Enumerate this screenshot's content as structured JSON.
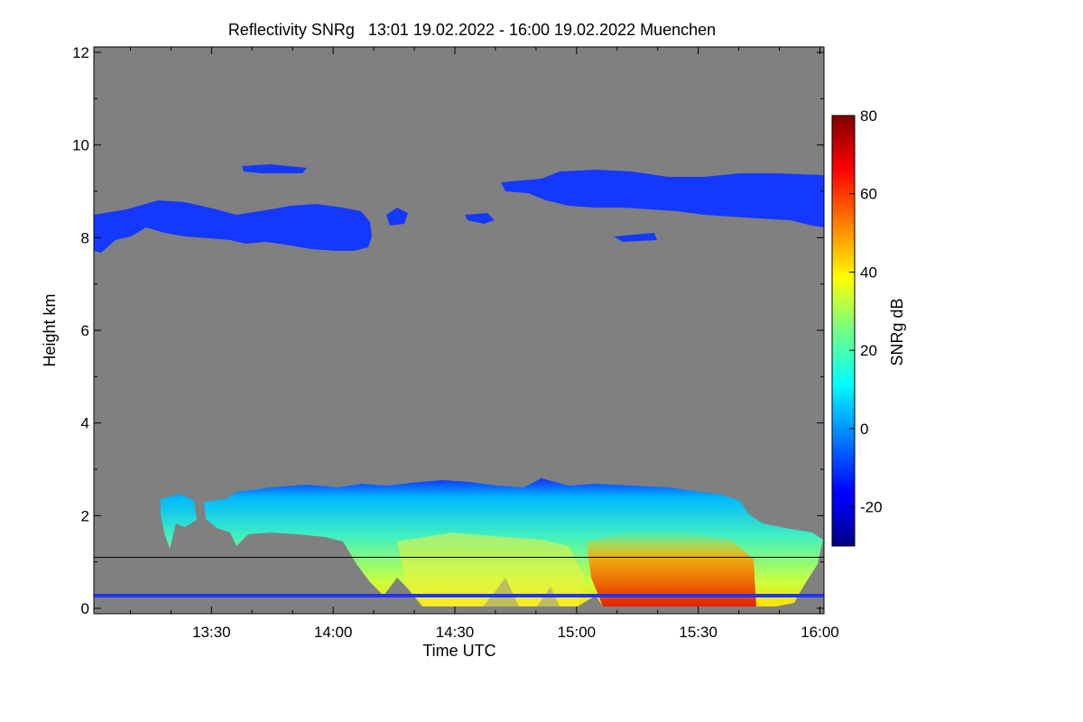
{
  "chart_data": {
    "type": "heatmap",
    "title": "Reflectivity SNRg   13:01 19.02.2022 - 16:00 19.02.2022 Muenchen",
    "xlabel": "Time UTC",
    "ylabel": "Height km",
    "x_range_utc": [
      "13:01",
      "16:00"
    ],
    "x_ticks": [
      {
        "label": "13:30",
        "minutes": 810
      },
      {
        "label": "14:00",
        "minutes": 840
      },
      {
        "label": "14:30",
        "minutes": 870
      },
      {
        "label": "15:00",
        "minutes": 900
      },
      {
        "label": "15:30",
        "minutes": 930
      },
      {
        "label": "16:00",
        "minutes": 960
      }
    ],
    "x_minutes_range": [
      781,
      961
    ],
    "ylim": [
      0,
      12
    ],
    "y_ticks": [
      "0",
      "2",
      "4",
      "6",
      "8",
      "10",
      "12"
    ],
    "reference_line_height_km": 1.1,
    "background_color": "#808080",
    "colorbar": {
      "label": "SNRg dB",
      "range": [
        -30,
        80
      ],
      "ticks": [
        "-20",
        "0",
        "20",
        "40",
        "60",
        "80"
      ],
      "colormap": "jet"
    },
    "echo_regions": [
      {
        "description": "cirrus layer",
        "time_range_utc": [
          "13:01",
          "14:05"
        ],
        "height_range_km": [
          7.5,
          8.8
        ],
        "typical_dB": -20
      },
      {
        "description": "cirrus layer",
        "time_range_utc": [
          "14:35",
          "16:00"
        ],
        "height_range_km": [
          8.2,
          9.4
        ],
        "typical_dB": -20
      },
      {
        "description": "precipitation",
        "time_range_utc": [
          "13:20",
          "15:55"
        ],
        "height_range_km": [
          0,
          2.8
        ],
        "typical_dB": 20
      },
      {
        "description": "strongest precipitation",
        "time_range_utc": [
          "15:05",
          "15:45"
        ],
        "height_range_km": [
          0,
          1.5
        ],
        "typical_dB": 60
      },
      {
        "description": "surface clutter band",
        "time_range_utc": [
          "13:01",
          "16:00"
        ],
        "height_range_km": [
          0.25,
          0.35
        ],
        "typical_dB": -15
      }
    ]
  }
}
